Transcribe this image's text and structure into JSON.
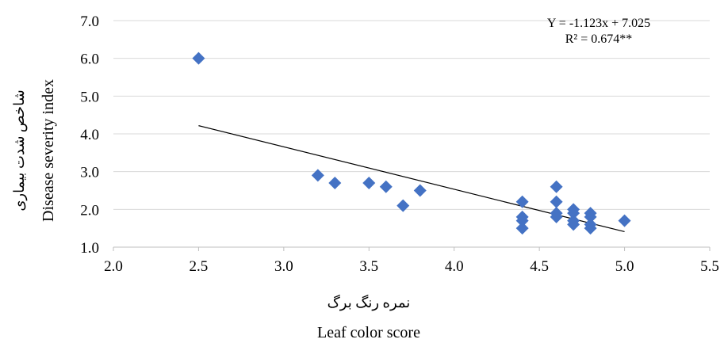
{
  "chart_data": {
    "type": "scatter",
    "xlabel_fa": "نمره رنگ برگ",
    "xlabel": "Leaf color  score",
    "ylabel_fa": "شاخص شدت بیماری",
    "ylabel": "Disease severity index",
    "xlim": [
      2.0,
      5.5
    ],
    "ylim": [
      1.0,
      7.0
    ],
    "x_ticks": [
      "2.0",
      "2.5",
      "3.0",
      "3.5",
      "4.0",
      "4.5",
      "5.0",
      "5.5"
    ],
    "y_ticks": [
      "1.0",
      "2.0",
      "3.0",
      "4.0",
      "5.0",
      "6.0",
      "7.0"
    ],
    "grid": "horizontal",
    "marker_color": "#4472C4",
    "marker_shape": "diamond",
    "points": [
      {
        "x": 2.5,
        "y": 6.0
      },
      {
        "x": 3.2,
        "y": 2.9
      },
      {
        "x": 3.3,
        "y": 2.7
      },
      {
        "x": 3.5,
        "y": 2.7
      },
      {
        "x": 3.6,
        "y": 2.6
      },
      {
        "x": 3.7,
        "y": 2.1
      },
      {
        "x": 3.8,
        "y": 2.5
      },
      {
        "x": 4.4,
        "y": 2.2
      },
      {
        "x": 4.4,
        "y": 1.8
      },
      {
        "x": 4.4,
        "y": 1.7
      },
      {
        "x": 4.4,
        "y": 1.5
      },
      {
        "x": 4.6,
        "y": 2.6
      },
      {
        "x": 4.6,
        "y": 2.2
      },
      {
        "x": 4.6,
        "y": 1.9
      },
      {
        "x": 4.6,
        "y": 1.8
      },
      {
        "x": 4.7,
        "y": 2.0
      },
      {
        "x": 4.7,
        "y": 1.9
      },
      {
        "x": 4.7,
        "y": 1.7
      },
      {
        "x": 4.7,
        "y": 1.6
      },
      {
        "x": 4.8,
        "y": 1.9
      },
      {
        "x": 4.8,
        "y": 1.8
      },
      {
        "x": 4.8,
        "y": 1.6
      },
      {
        "x": 4.8,
        "y": 1.5
      },
      {
        "x": 5.0,
        "y": 1.7
      }
    ],
    "trendline": {
      "slope": -1.123,
      "intercept": 7.025,
      "x_range": [
        2.5,
        5.0
      ],
      "equation": "Y = -1.123x + 7.025",
      "r_squared": "R² = 0.674**"
    }
  }
}
